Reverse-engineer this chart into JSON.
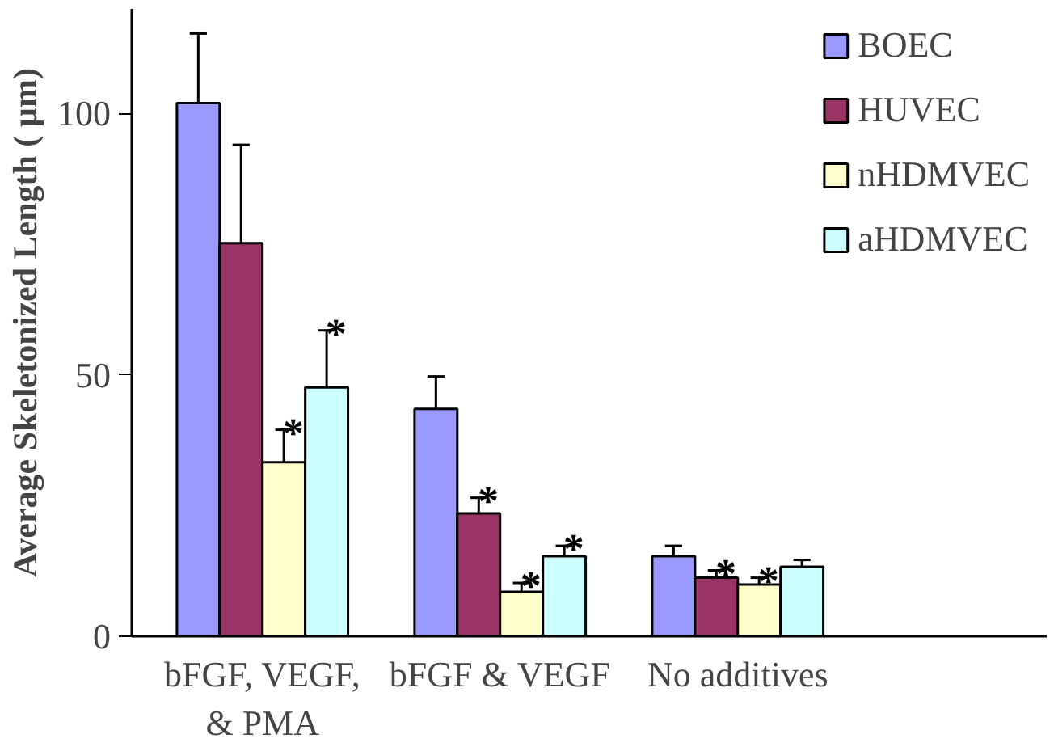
{
  "chart_data": {
    "type": "bar",
    "ylabel": "Average Skeletonized Length ( µm)",
    "categories": [
      "bFGF, VEGF,\n& PMA",
      "bFGF & VEGF",
      "No additives"
    ],
    "series": [
      {
        "name": "BOEC",
        "color": "#9999ff",
        "values": [
          102,
          43.5,
          15.3
        ],
        "errors": [
          [
            102,
            115.3
          ],
          [
            43.5,
            49.7
          ],
          [
            15.3,
            17.3
          ]
        ],
        "value_labels": [
          null,
          null,
          null
        ]
      },
      {
        "name": "HUVEC",
        "color": "#993366",
        "values": [
          75.2,
          23.5,
          11.2
        ],
        "errors": [
          [
            75.2,
            94
          ],
          [
            23.5,
            26.5
          ],
          [
            11.2,
            12.6
          ]
        ],
        "value_labels": [
          null,
          "*",
          "*"
        ]
      },
      {
        "name": "nHDMVEC",
        "color": "#ffffcc",
        "values": [
          33.3,
          8.5,
          9.9
        ],
        "errors": [
          [
            33.3,
            39.5
          ],
          [
            8.5,
            10.2
          ],
          [
            9.9,
            11.2
          ]
        ],
        "value_labels": [
          "*",
          "*",
          "*"
        ]
      },
      {
        "name": "aHDMVEC",
        "color": "#ccffff",
        "values": [
          47.6,
          15.3,
          13.3
        ],
        "errors": [
          [
            47.6,
            58.5
          ],
          [
            15.3,
            17.3
          ],
          [
            13.3,
            14.6
          ]
        ],
        "value_labels": [
          "*",
          "*",
          null
        ]
      }
    ],
    "ylim": [
      0,
      120
    ],
    "yticks": [
      0,
      50,
      100
    ],
    "legend": "top right",
    "grid": false
  }
}
